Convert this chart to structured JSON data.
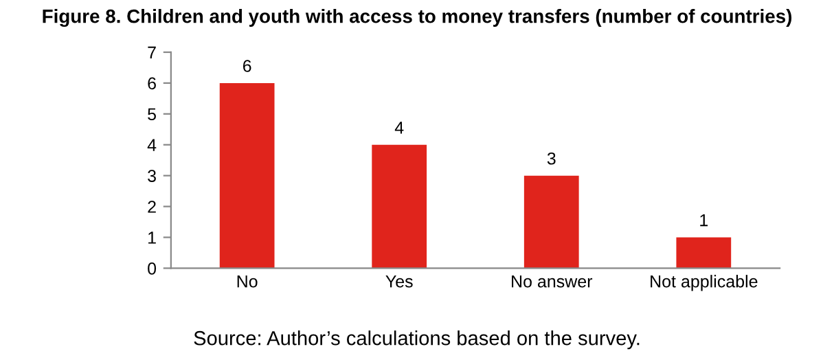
{
  "chart_data": {
    "type": "bar",
    "title": "Figure 8. Children and youth with access to money transfers (number of countries)",
    "categories": [
      "No",
      "Yes",
      "No answer",
      "Not applicable"
    ],
    "values": [
      6,
      4,
      3,
      1
    ],
    "color": "#e0241c",
    "ylim": [
      0,
      7
    ],
    "yticks": [
      0,
      1,
      2,
      3,
      4,
      5,
      6,
      7
    ],
    "grid": false,
    "data_labels": true,
    "annotations": [
      "Source: Author’s calculations based on the survey."
    ]
  }
}
